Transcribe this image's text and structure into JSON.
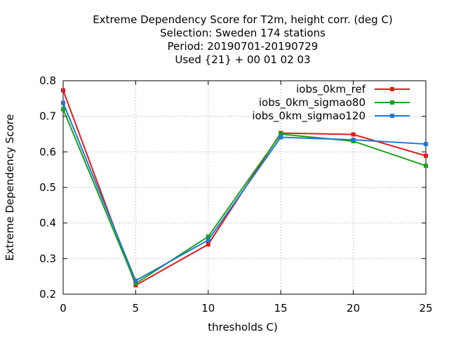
{
  "chart_data": {
    "type": "line",
    "title_lines": [
      "Extreme Dependency Score  for T2m, height corr. (deg C)",
      "Selection: Sweden    174 stations",
      "Period: 20190701-20190729",
      "Used {21} + 00 01 02 03"
    ],
    "xlabel": "thresholds C)",
    "ylabel": "Extreme Dependency Score",
    "x": [
      0,
      5,
      10,
      15,
      20,
      25
    ],
    "xlim": [
      0,
      25
    ],
    "ylim": [
      0.2,
      0.8
    ],
    "x_ticks": [
      "0",
      "5",
      "10",
      "15",
      "20",
      "25"
    ],
    "y_ticks": [
      "0.2",
      "0.3",
      "0.4",
      "0.5",
      "0.6",
      "0.7",
      "0.8"
    ],
    "grid": true,
    "legend_position": "top-right",
    "series": [
      {
        "name": "iobs_0km_ref",
        "color": "#e41a1c",
        "values": [
          0.773,
          0.225,
          0.34,
          0.653,
          0.649,
          0.589
        ]
      },
      {
        "name": "iobs_0km_sigmao80",
        "color": "#1aa31a",
        "values": [
          0.72,
          0.23,
          0.362,
          0.65,
          0.63,
          0.561
        ]
      },
      {
        "name": "iobs_0km_sigmao120",
        "color": "#1f78d4",
        "values": [
          0.738,
          0.238,
          0.352,
          0.641,
          0.634,
          0.622
        ]
      }
    ]
  }
}
